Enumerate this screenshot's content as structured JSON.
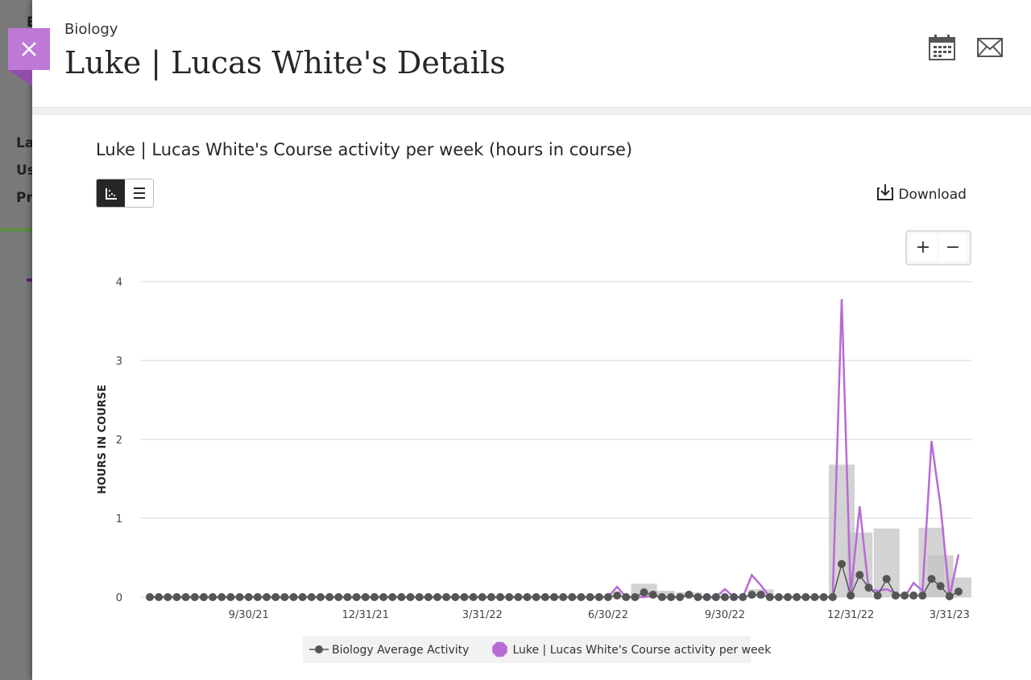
{
  "background": {
    "heading": "E",
    "rows": [
      "La",
      "Us",
      "Pr"
    ]
  },
  "header": {
    "course": "Biology",
    "title": "Luke | Lucas White's Details"
  },
  "controls": {
    "download": "Download",
    "zoom_in": "+",
    "zoom_out": "−"
  },
  "chart_data": {
    "type": "line",
    "title": "Luke | Lucas White's Course activity per week (hours in course)",
    "y_label": "HOURS IN COURSE",
    "categories": [
      null,
      null,
      null,
      null,
      null,
      null,
      null,
      null,
      null,
      null,
      null,
      "9/30/21",
      null,
      null,
      null,
      null,
      null,
      null,
      null,
      null,
      null,
      null,
      null,
      null,
      "12/31/21",
      null,
      null,
      null,
      null,
      null,
      null,
      null,
      null,
      null,
      null,
      null,
      null,
      "3/31/22",
      null,
      null,
      null,
      null,
      null,
      null,
      null,
      null,
      null,
      null,
      null,
      null,
      null,
      "6/30/22",
      null,
      null,
      null,
      null,
      null,
      null,
      null,
      null,
      null,
      null,
      null,
      null,
      "9/30/22",
      null,
      null,
      null,
      null,
      null,
      null,
      null,
      null,
      null,
      null,
      null,
      null,
      null,
      "12/31/22",
      null,
      null,
      null,
      null,
      null,
      null,
      null,
      null,
      null,
      null,
      "3/31/23",
      null
    ],
    "series": [
      {
        "name": "Biology Average Activity",
        "type": "line",
        "color": "#555555",
        "values": [
          0,
          0,
          0,
          0,
          0,
          0,
          0,
          0,
          0,
          0,
          0,
          0,
          0,
          0,
          0,
          0,
          0,
          0,
          0,
          0,
          0,
          0,
          0,
          0,
          0,
          0,
          0,
          0,
          0,
          0,
          0,
          0,
          0,
          0,
          0,
          0,
          0,
          0,
          0,
          0,
          0,
          0,
          0,
          0,
          0,
          0,
          0,
          0,
          0,
          0,
          0,
          0,
          0.02,
          0,
          0,
          0.06,
          0.03,
          0,
          0,
          0,
          0.03,
          0,
          0,
          0,
          0,
          0,
          0,
          0.03,
          0.03,
          0,
          0,
          0,
          0,
          0,
          0,
          0,
          0,
          0.42,
          0.02,
          0.28,
          0.12,
          0.02,
          0.23,
          0.02,
          0.02,
          0.02,
          0.02,
          0.23,
          0.14,
          0.01,
          0.07
        ]
      },
      {
        "name": "Luke | Lucas White's Course activity per week",
        "type": "line",
        "color": "#b86bd4",
        "values": [
          0,
          0,
          0,
          0,
          0,
          0,
          0,
          0,
          0,
          0,
          0,
          0,
          0,
          0,
          0,
          0,
          0,
          0,
          0,
          0,
          0,
          0,
          0,
          0,
          0,
          0,
          0,
          0,
          0,
          0,
          0,
          0,
          0,
          0,
          0,
          0,
          0,
          0,
          0,
          0,
          0,
          0,
          0,
          0,
          0,
          0,
          0,
          0,
          0,
          0,
          0,
          0,
          0.13,
          0,
          0,
          0,
          0.02,
          0,
          0,
          0,
          0.03,
          0,
          0,
          0,
          0.1,
          0,
          0,
          0.28,
          0.15,
          0,
          0,
          0,
          0,
          0,
          0,
          0,
          0,
          3.78,
          0.02,
          1.15,
          0.1,
          0.08,
          0.1,
          0.05,
          0,
          0.18,
          0.08,
          1.98,
          1.15,
          0,
          0.54
        ]
      },
      {
        "type": "bar",
        "color": "#c4c4c4",
        "values": [
          null,
          null,
          null,
          null,
          null,
          null,
          null,
          null,
          null,
          null,
          null,
          null,
          null,
          null,
          null,
          null,
          null,
          null,
          null,
          null,
          null,
          null,
          null,
          null,
          null,
          null,
          null,
          null,
          null,
          null,
          null,
          null,
          null,
          null,
          null,
          null,
          null,
          null,
          null,
          null,
          null,
          null,
          null,
          null,
          null,
          null,
          null,
          null,
          null,
          null,
          null,
          null,
          null,
          null,
          null,
          0.17,
          null,
          0.08,
          null,
          null,
          0.06,
          null,
          null,
          null,
          null,
          null,
          null,
          null,
          0.1,
          null,
          null,
          null,
          null,
          null,
          null,
          null,
          null,
          1.68,
          null,
          0.82,
          null,
          null,
          0.87,
          null,
          null,
          null,
          null,
          0.88,
          0.53,
          null,
          0.25
        ]
      }
    ],
    "ylim": [
      0,
      4
    ],
    "yticks": [
      0,
      1,
      2,
      3,
      4
    ],
    "grid": true,
    "legend": "bottom"
  }
}
